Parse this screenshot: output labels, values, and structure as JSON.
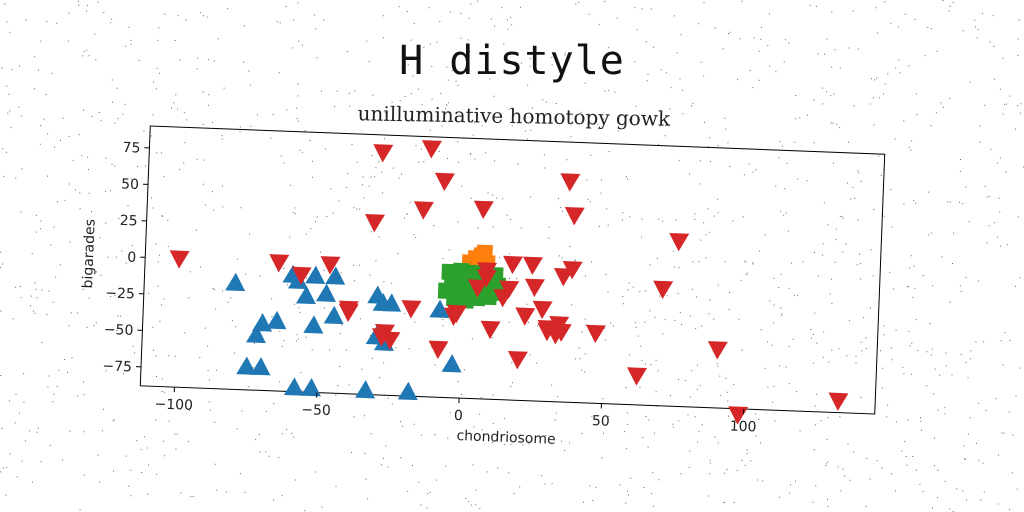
{
  "title": "H distyle",
  "chart_data": {
    "type": "scatter",
    "title": "unilluminative homotopy gowk",
    "xlabel": "chondriosome",
    "ylabel": "bigarades",
    "xlim": [
      -112,
      146
    ],
    "ylim": [
      -88,
      90
    ],
    "xticks": [
      -100,
      -50,
      0,
      50,
      100
    ],
    "yticks": [
      75,
      50,
      25,
      0,
      -25,
      -50,
      -75
    ],
    "grid": false,
    "legend": "none",
    "series": [
      {
        "color": "#1f77b4",
        "marker": "triangle-up",
        "x": [
          -80,
          -60,
          -58,
          -55,
          -52,
          -48,
          -45,
          -52,
          -65,
          -70,
          -72,
          -70,
          -75,
          -58,
          -45,
          -30,
          -28,
          -25,
          -30,
          -27,
          -8,
          -3,
          -18,
          -33,
          -52
        ],
        "y": [
          -15,
          -8,
          -12,
          -22,
          -8,
          -20,
          -35,
          -42,
          -40,
          -42,
          -50,
          -72,
          -72,
          -85,
          -8,
          -20,
          -25,
          -25,
          -48,
          -52,
          -28,
          -65,
          -85,
          -85,
          -85
        ]
      },
      {
        "color": "#ff7f0e",
        "marker": "square",
        "x": [
          2,
          4,
          6,
          7,
          8
        ],
        "y": [
          5,
          8,
          10,
          12,
          5
        ]
      },
      {
        "color": "#2ca02c",
        "marker": "square",
        "x": [
          -5,
          -3,
          -1,
          1,
          3,
          5,
          7,
          9,
          11,
          -4,
          -2,
          0,
          2,
          4,
          6,
          8,
          10,
          12,
          -6,
          -1,
          3,
          7,
          11,
          -3,
          1,
          5,
          9,
          2
        ],
        "y": [
          -2,
          -3,
          -1,
          -4,
          -2,
          -3,
          -5,
          -4,
          -3,
          -8,
          -9,
          -7,
          -10,
          -8,
          -11,
          -9,
          -12,
          -10,
          -15,
          -16,
          -14,
          -17,
          -15,
          -20,
          -21,
          -19,
          -18,
          -6
        ]
      },
      {
        "color": "#d62728",
        "marker": "triangle-down",
        "x": [
          -100,
          -65,
          -57,
          -47,
          -40,
          -40,
          -30,
          -27,
          -28,
          -25,
          -18,
          -15,
          -13,
          -8,
          -8,
          -3,
          -2,
          6,
          5,
          8,
          10,
          14,
          16,
          17,
          22,
          24,
          20,
          25,
          28,
          30,
          30,
          33,
          34,
          35,
          35,
          36,
          38,
          38,
          47,
          62,
          70,
          75,
          90,
          98,
          133,
          8,
          -32
        ],
        "y": [
          0,
          0,
          -8,
          0,
          -30,
          -32,
          78,
          -45,
          -48,
          -50,
          -28,
          40,
          82,
          -55,
          60,
          -32,
          -30,
          42,
          -12,
          -5,
          -40,
          -18,
          -12,
          5,
          -30,
          5,
          -60,
          -10,
          -25,
          -40,
          -38,
          -42,
          -35,
          -40,
          -2,
          63,
          3,
          40,
          -40,
          -68,
          -8,
          25,
          -48,
          -92,
          -80,
          0,
          30
        ]
      }
    ]
  }
}
